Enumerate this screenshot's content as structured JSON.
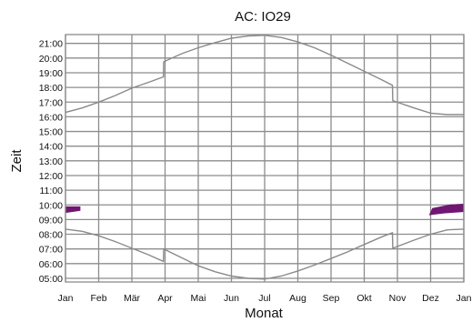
{
  "chart_data": {
    "type": "line",
    "title": "AC: IO29",
    "xlabel": "Monat",
    "ylabel": "Zeit",
    "x_ticks": [
      "Jan",
      "Feb",
      "Mär",
      "Apr",
      "Mai",
      "Jun",
      "Jul",
      "Aug",
      "Sep",
      "Okt",
      "Nov",
      "Dez",
      "Jan"
    ],
    "y_ticks": [
      "05:00",
      "06:00",
      "07:00",
      "08:00",
      "09:00",
      "10:00",
      "11:00",
      "12:00",
      "13:00",
      "14:00",
      "15:00",
      "16:00",
      "17:00",
      "18:00",
      "19:00",
      "20:00",
      "21:00"
    ],
    "xlim": [
      0,
      12
    ],
    "ylim": [
      4.75,
      21.6
    ],
    "grid": true,
    "colors": {
      "curves": "#8a8a8a",
      "marks": "#6f1772"
    },
    "series": [
      {
        "role": "upper-curve",
        "points": [
          [
            0,
            16.3
          ],
          [
            0.5,
            16.6
          ],
          [
            1,
            17.0
          ],
          [
            1.5,
            17.45
          ],
          [
            2,
            17.95
          ],
          [
            2.5,
            18.35
          ],
          [
            2.95,
            18.72
          ],
          [
            2.96,
            19.75
          ],
          [
            3.5,
            20.3
          ],
          [
            4,
            20.7
          ],
          [
            4.5,
            21.05
          ],
          [
            5,
            21.35
          ],
          [
            5.5,
            21.5
          ],
          [
            6,
            21.55
          ],
          [
            6.5,
            21.4
          ],
          [
            7,
            21.1
          ],
          [
            7.5,
            20.7
          ],
          [
            8,
            20.2
          ],
          [
            8.5,
            19.65
          ],
          [
            9,
            19.1
          ],
          [
            9.5,
            18.55
          ],
          [
            9.85,
            18.15
          ],
          [
            9.86,
            17.1
          ],
          [
            10.5,
            16.6
          ],
          [
            11,
            16.25
          ],
          [
            11.5,
            16.15
          ],
          [
            12,
            16.15
          ]
        ]
      },
      {
        "role": "lower-curve",
        "points": [
          [
            0,
            8.35
          ],
          [
            0.5,
            8.2
          ],
          [
            1,
            7.9
          ],
          [
            1.5,
            7.5
          ],
          [
            2,
            7.05
          ],
          [
            2.5,
            6.6
          ],
          [
            2.95,
            6.15
          ],
          [
            2.96,
            7.0
          ],
          [
            3.5,
            6.4
          ],
          [
            4,
            5.85
          ],
          [
            4.5,
            5.45
          ],
          [
            5,
            5.15
          ],
          [
            5.5,
            5.0
          ],
          [
            6,
            4.95
          ],
          [
            6.5,
            5.15
          ],
          [
            7,
            5.5
          ],
          [
            7.5,
            5.9
          ],
          [
            8,
            6.35
          ],
          [
            8.5,
            6.8
          ],
          [
            9,
            7.3
          ],
          [
            9.5,
            7.8
          ],
          [
            9.85,
            8.1
          ],
          [
            9.86,
            7.05
          ],
          [
            10.5,
            7.6
          ],
          [
            11,
            8.0
          ],
          [
            11.5,
            8.3
          ],
          [
            12,
            8.35
          ]
        ]
      },
      {
        "role": "mark",
        "points": [
          [
            0,
            9.45
          ],
          [
            0.45,
            9.6
          ],
          [
            0.45,
            9.9
          ],
          [
            0,
            9.9
          ]
        ]
      },
      {
        "role": "mark",
        "points": [
          [
            10.95,
            9.3
          ],
          [
            11.4,
            9.42
          ],
          [
            12,
            9.52
          ],
          [
            12,
            10.08
          ],
          [
            11.6,
            10.03
          ],
          [
            11.05,
            9.78
          ]
        ]
      }
    ]
  }
}
